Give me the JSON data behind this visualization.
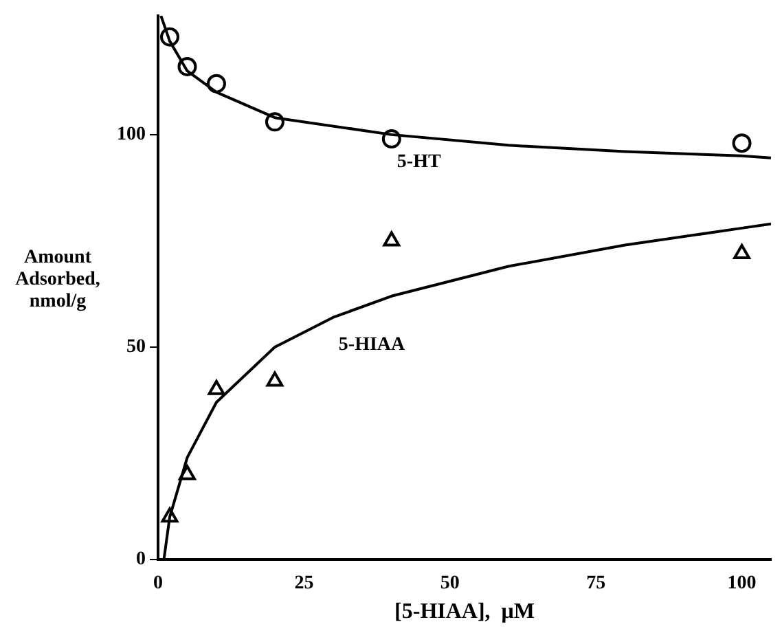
{
  "chart_data": {
    "type": "scatter",
    "xlabel": "[5-HIAA],  μM",
    "ylabel": "Amount\nAdsorbed,\nnmol/g",
    "xlim": [
      0,
      105
    ],
    "ylim": [
      0,
      128
    ],
    "xticks": [
      0,
      25,
      50,
      75,
      100
    ],
    "yticks": [
      0,
      50,
      100
    ],
    "grid": false,
    "legend": false,
    "series": [
      {
        "marker": "circle",
        "color": "#000000",
        "x": [
          2,
          5,
          10,
          20,
          40,
          100
        ],
        "values": [
          123,
          116,
          112,
          103,
          99,
          98
        ]
      },
      {
        "marker": "triangle",
        "color": "#000000",
        "x": [
          2,
          5,
          10,
          20,
          40,
          100
        ],
        "values": [
          10,
          20,
          40,
          42,
          75,
          72
        ]
      },
      {
        "type": "line",
        "name": "5-HT",
        "marker": "none",
        "color": "#000000",
        "x": [
          0.5,
          2,
          5,
          10,
          20,
          40,
          60,
          80,
          100,
          105
        ],
        "values": [
          128,
          122,
          115,
          110,
          104,
          100,
          97.5,
          96,
          95,
          94.5
        ]
      },
      {
        "type": "line",
        "name": "5-HIAA",
        "marker": "none",
        "color": "#000000",
        "x": [
          1,
          2,
          5,
          10,
          20,
          30,
          40,
          60,
          80,
          100,
          105
        ],
        "values": [
          0,
          10,
          24,
          37,
          50,
          57,
          62,
          69,
          74,
          78,
          79
        ]
      }
    ]
  }
}
